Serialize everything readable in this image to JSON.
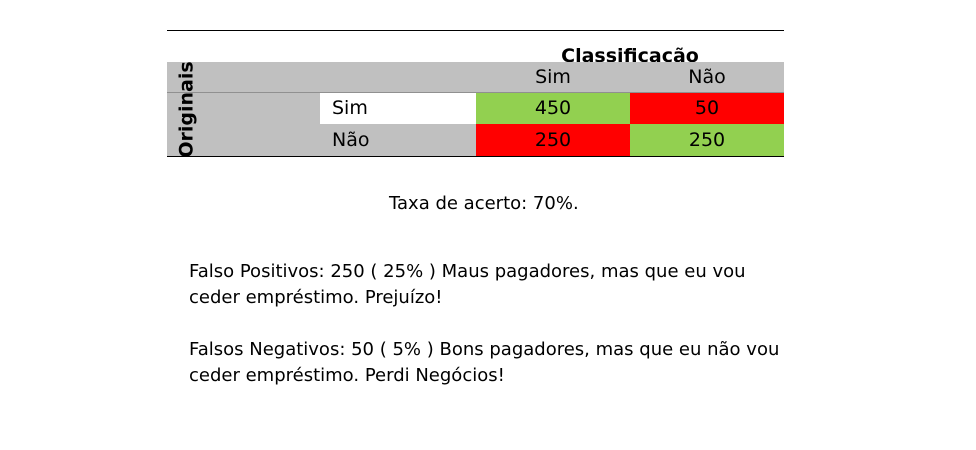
{
  "matrix": {
    "title": "Classificação",
    "side_label": "Originais",
    "columns": [
      "Sim",
      "Não"
    ],
    "rows": [
      {
        "label": "Sim",
        "values": [
          "450",
          "50"
        ]
      },
      {
        "label": "Não",
        "values": [
          "250",
          "250"
        ]
      }
    ],
    "colors": {
      "header": "#c0c0c0",
      "correct": "#92d050",
      "error": "#ff0000",
      "row_label_white": "#ffffff"
    }
  },
  "text": {
    "accuracy": "Taxa de acerto:  70%.",
    "false_positives_line1": "Falso Positivos:  250 (  25%  ) Maus pagadores,  mas que eu vou",
    "false_positives_line2": "ceder empréstimo. Prejuízo!",
    "false_negatives_line1": "Falsos Negativos:  50 (  5%  ) Bons pagadores, mas que eu não vou",
    "false_negatives_line2": "ceder empréstimo.  Perdi Negócios!"
  }
}
